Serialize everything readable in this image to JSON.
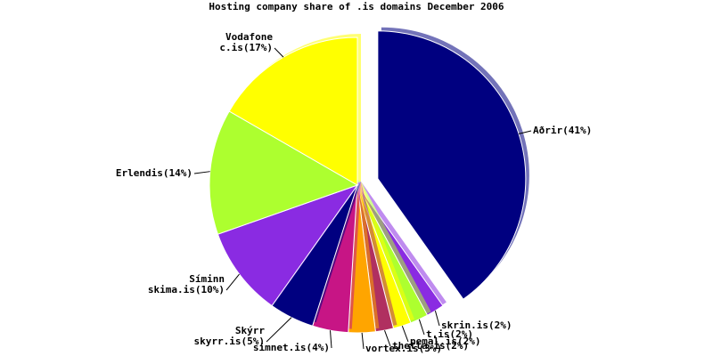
{
  "chart_data": {
    "type": "pie",
    "title": "Hosting company share of .is domains December 2006",
    "categories": [
      [
        "Aðrir(41%)"
      ],
      [
        "skrin.is(2%)"
      ],
      [
        "t.is(2%)"
      ],
      [
        "pemal.is(2%)"
      ],
      [
        "thetta.is(2%)"
      ],
      [
        "vortex.is(3%)"
      ],
      [
        "simnet.is(4%)"
      ],
      [
        "Skýrr",
        "skyrr.is(5%)"
      ],
      [
        "Síminn",
        "skima.is(10%)"
      ],
      [
        "Erlendis(14%)"
      ],
      [
        "Vodafone",
        "c.is(17%)"
      ]
    ],
    "values": [
      41,
      2,
      2,
      2,
      2,
      3,
      4,
      5,
      10,
      14,
      17
    ],
    "colors": [
      "#000080",
      "#8a2be2",
      "#adff2f",
      "#ffff00",
      "#b03060",
      "#ffa500",
      "#c71585",
      "#000080",
      "#8a2be2",
      "#adff2f",
      "#ffff00"
    ],
    "exploded": [
      0
    ]
  }
}
